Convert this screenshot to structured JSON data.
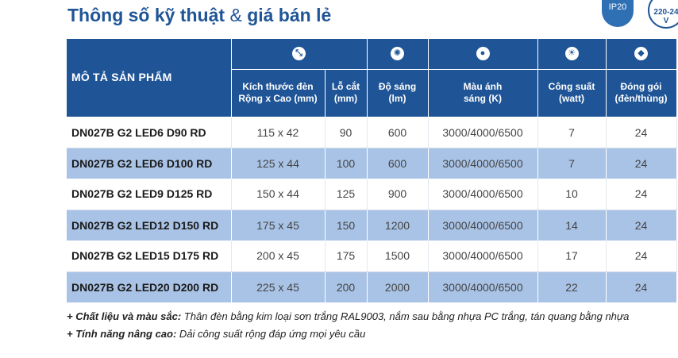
{
  "title": {
    "main": "Thông số kỹ thuật",
    "amp": "&",
    "rest": "giá bán lẻ"
  },
  "badges": {
    "ip": "IP20",
    "voltage": "220-24\nV"
  },
  "table": {
    "main_header": "MÔ TẢ SẢN PHẨM",
    "columns": [
      {
        "icon": "resize-icon",
        "glyph": "⤡",
        "label": "Kích thước đèn\nRộng x Cao (mm)"
      },
      {
        "icon": "",
        "glyph": "",
        "label": "Lỗ cắt\n(mm)"
      },
      {
        "icon": "brightness-icon",
        "glyph": "✺",
        "label": "Độ sáng\n(lm)"
      },
      {
        "icon": "palette-icon",
        "glyph": "●",
        "label": "Màu ánh\nsáng (K)"
      },
      {
        "icon": "bulb-icon",
        "glyph": "☀",
        "label": "Công suất\n(watt)"
      },
      {
        "icon": "box-icon",
        "glyph": "◆",
        "label": "Đóng gói\n(đèn/thùng)"
      }
    ],
    "rows": [
      {
        "name": "DN027B G2 LED6 D90 RD",
        "size": "115 x 42",
        "cut": "90",
        "lm": "600",
        "cct": "3000/4000/6500",
        "watt": "7",
        "pack": "24"
      },
      {
        "name": "DN027B G2 LED6 D100 RD",
        "size": "125 x 44",
        "cut": "100",
        "lm": "600",
        "cct": "3000/4000/6500",
        "watt": "7",
        "pack": "24"
      },
      {
        "name": "DN027B G2 LED9 D125 RD",
        "size": "150 x 44",
        "cut": "125",
        "lm": "900",
        "cct": "3000/4000/6500",
        "watt": "10",
        "pack": "24"
      },
      {
        "name": "DN027B G2 LED12 D150 RD",
        "size": "175 x 45",
        "cut": "150",
        "lm": "1200",
        "cct": "3000/4000/6500",
        "watt": "14",
        "pack": "24"
      },
      {
        "name": "DN027B G2 LED15 D175 RD",
        "size": "200 x 45",
        "cut": "175",
        "lm": "1500",
        "cct": "3000/4000/6500",
        "watt": "17",
        "pack": "24"
      },
      {
        "name": "DN027B G2 LED20 D200 RD",
        "size": "225 x 45",
        "cut": "200",
        "lm": "2000",
        "cct": "3000/4000/6500",
        "watt": "22",
        "pack": "24"
      }
    ]
  },
  "notes": [
    {
      "label": "+ Chất liệu và màu sắc:",
      "text": " Thân đèn bằng kim loại sơn trắng RAL9003, nắm sau bằng nhựa PC trắng, tán quang bằng nhựa"
    },
    {
      "label": "+ Tính năng nâng cao:",
      "text": " Dải công suất rộng đáp ứng mọi yêu cầu"
    }
  ],
  "colors": {
    "header_bg": "#1f5597",
    "alt_row": "#a9c3e6",
    "title": "#1f5597"
  }
}
